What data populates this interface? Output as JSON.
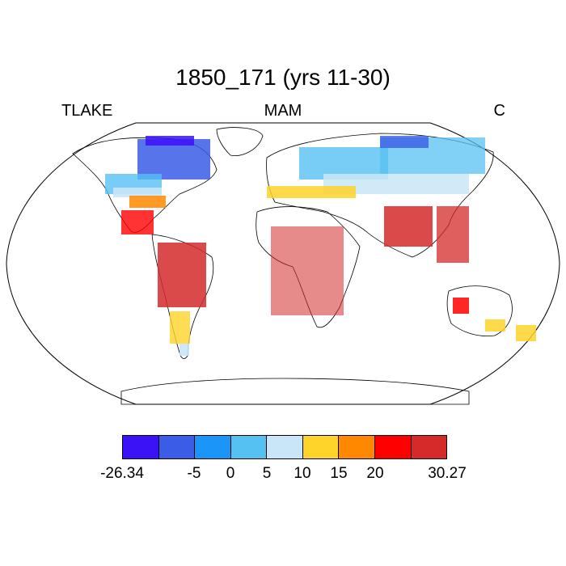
{
  "title": "1850_171 (yrs 11-30)",
  "left_label": "TLAKE",
  "center_label": "MAM",
  "right_label": "C",
  "colorbar": {
    "colors": [
      "#3b11f5",
      "#3b5ce6",
      "#1b96f8",
      "#55c1f2",
      "#c8e6f7",
      "#fed42a",
      "#ff8800",
      "#ff0000",
      "#d42a2a"
    ],
    "tick_labels": [
      "-26.34",
      "-5",
      "0",
      "5",
      "10",
      "15",
      "20",
      "30.27"
    ]
  }
}
